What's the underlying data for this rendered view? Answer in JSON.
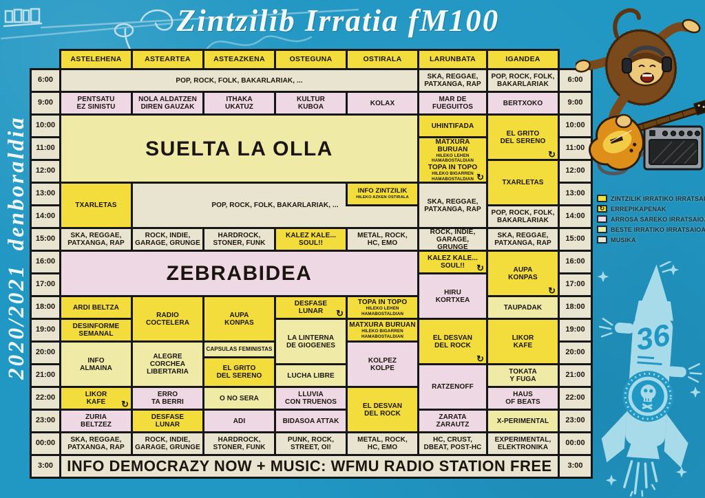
{
  "title": "Zintzilib Irratia fM100",
  "season_label": "2020/2021 denboraldia",
  "rocket_number": "36",
  "icons": {
    "repeat_glyph": "↻",
    "repeat_meaning": "errepikapena (repeat broadcast)"
  },
  "colors": {
    "background_blue": "#2197c3",
    "zintzilik_yellow": "#f3dd3d",
    "arrosa_pink": "#eed8e4",
    "beste_pale_yellow": "#efeaa6",
    "musika_cream": "#e9e4cf",
    "grid_line": "#161616",
    "light_blue_art": "#a7dbea"
  },
  "legend": {
    "items": [
      {
        "swatch": "zintzilik",
        "label": "ZINTZILIK IRRATIKO IRRATSAIOAK"
      },
      {
        "swatch": "repeat",
        "label": "ERREPIKAPENAK"
      },
      {
        "swatch": "arrosa",
        "label": "ARROSA SAREKO IRRATSAIOAK"
      },
      {
        "swatch": "beste",
        "label": "BESTE IRRATIKO IRRATSAIOAK"
      },
      {
        "swatch": "musika",
        "label": "MUSIKA"
      }
    ]
  },
  "schedule": {
    "days": [
      "ASTELEHENA",
      "ASTEARTEA",
      "ASTEAZKENA",
      "OSTEGUNA",
      "OSTIRALA",
      "LARUNBATA",
      "IGANDEA"
    ],
    "times": [
      "6:00",
      "9:00",
      "10:00",
      "11:00",
      "12:00",
      "13:00",
      "14:00",
      "15:00",
      "16:00",
      "17:00",
      "18:00",
      "19:00",
      "20:00",
      "21:00",
      "22:00",
      "23:00",
      "00:00",
      "3:00"
    ],
    "cells": [
      {
        "d": 1,
        "r": 0,
        "cs": 5,
        "type": "musika",
        "lines": [
          {
            "t": "POP, ROCK, FOLK, BAKARLARIAK, ..."
          }
        ]
      },
      {
        "d": 6,
        "r": 0,
        "type": "musika",
        "lines": [
          {
            "t": "SKA, REGGAE,"
          },
          {
            "t": "PATXANGA, RAP"
          }
        ]
      },
      {
        "d": 7,
        "r": 0,
        "type": "musika",
        "lines": [
          {
            "t": "POP, ROCK, FOLK,"
          },
          {
            "t": "BAKARLARIAK"
          }
        ]
      },
      {
        "d": 1,
        "r": 1,
        "type": "arrosa",
        "lines": [
          {
            "t": "PENTSATU"
          },
          {
            "t": "EZ SINISTU"
          }
        ]
      },
      {
        "d": 2,
        "r": 1,
        "type": "arrosa",
        "lines": [
          {
            "t": "NOLA ALDATZEN"
          },
          {
            "t": "DIREN GAUZAK"
          }
        ]
      },
      {
        "d": 3,
        "r": 1,
        "type": "arrosa",
        "lines": [
          {
            "t": "ITHAKA"
          },
          {
            "t": "UKATUZ"
          }
        ]
      },
      {
        "d": 4,
        "r": 1,
        "type": "arrosa",
        "lines": [
          {
            "t": "KULTUR"
          },
          {
            "t": "KUBOA"
          }
        ]
      },
      {
        "d": 5,
        "r": 1,
        "type": "arrosa",
        "lines": [
          {
            "t": "KOLAX"
          }
        ]
      },
      {
        "d": 6,
        "r": 1,
        "type": "arrosa",
        "lines": [
          {
            "t": "MAR DE"
          },
          {
            "t": "FUEGUITOS"
          }
        ]
      },
      {
        "d": 7,
        "r": 1,
        "type": "arrosa",
        "lines": [
          {
            "t": "BERTXOKO"
          }
        ]
      },
      {
        "d": 1,
        "r": 2,
        "cs": 5,
        "rs": 3,
        "type": "beste",
        "size": "xl",
        "lines": [
          {
            "t": "SUELTA LA OLLA"
          }
        ]
      },
      {
        "d": 6,
        "r": 2,
        "type": "zintzilik",
        "lines": [
          {
            "t": "UHINTIFADA"
          }
        ]
      },
      {
        "d": 6,
        "r": 3,
        "rs": 2,
        "type": "zintzilik",
        "rep": 1,
        "lines": [
          {
            "t": "MATXURA BURUAN"
          },
          {
            "t": "HILEKO LEHEN HAMABOSTALDIAN",
            "s": 1
          },
          {
            "t": "TOPA IN TOPO"
          },
          {
            "t": "HILEKO BIGARREN HAMABOSTALDIAN",
            "s": 1
          }
        ]
      },
      {
        "d": 7,
        "r": 2,
        "rs": 2,
        "type": "zintzilik",
        "rep": 1,
        "lines": [
          {
            "t": "EL GRITO"
          },
          {
            "t": "DEL SERENO"
          }
        ]
      },
      {
        "d": 7,
        "r": 4,
        "rs": 2,
        "type": "zintzilik",
        "lines": [
          {
            "t": "TXARLETAS"
          }
        ]
      },
      {
        "d": 1,
        "r": 5,
        "rs": 2,
        "type": "zintzilik",
        "lines": [
          {
            "t": "TXARLETAS"
          }
        ]
      },
      {
        "d": 2,
        "r": 5,
        "cs": 4,
        "rs": 2,
        "type": "musika",
        "lines": [
          {
            "t": "POP, ROCK, FOLK, BAKARLARIAK, ..."
          }
        ]
      },
      {
        "d": 5,
        "r": 5,
        "type": "zintzilik",
        "z": 1,
        "lines": [
          {
            "t": "INFO ZINTZILIK"
          },
          {
            "t": "HILEKO AZKEN OSTIRALA",
            "s": 1
          }
        ]
      },
      {
        "d": 6,
        "r": 5,
        "rs": 2,
        "type": "musika",
        "lines": [
          {
            "t": "SKA, REGGAE,"
          },
          {
            "t": "PATXANGA, RAP"
          }
        ]
      },
      {
        "d": 7,
        "r": 6,
        "type": "musika",
        "lines": [
          {
            "t": "POP, ROCK, FOLK,"
          },
          {
            "t": "BAKARLARIAK"
          }
        ]
      },
      {
        "d": 1,
        "r": 7,
        "type": "musika",
        "lines": [
          {
            "t": "SKA, REGGAE,"
          },
          {
            "t": "PATXANGA, RAP"
          }
        ]
      },
      {
        "d": 2,
        "r": 7,
        "type": "musika",
        "lines": [
          {
            "t": "ROCK, INDIE,"
          },
          {
            "t": "GARAGE, GRUNGE"
          }
        ]
      },
      {
        "d": 3,
        "r": 7,
        "type": "musika",
        "lines": [
          {
            "t": "HARDROCK,"
          },
          {
            "t": "STONER, FUNK"
          }
        ]
      },
      {
        "d": 4,
        "r": 7,
        "type": "zintzilik",
        "lines": [
          {
            "t": "KALEZ KALE..."
          },
          {
            "t": "SOUL!!"
          }
        ]
      },
      {
        "d": 5,
        "r": 7,
        "type": "musika",
        "lines": [
          {
            "t": "METAL, ROCK,"
          },
          {
            "t": "HC, EMO"
          }
        ]
      },
      {
        "d": 6,
        "r": 7,
        "type": "musika",
        "lines": [
          {
            "t": "ROCK, INDIE,"
          },
          {
            "t": "GARAGE, GRUNGE"
          }
        ]
      },
      {
        "d": 7,
        "r": 7,
        "type": "musika",
        "lines": [
          {
            "t": "SKA, REGGAE,"
          },
          {
            "t": "PATXANGA, RAP"
          }
        ]
      },
      {
        "d": 1,
        "r": 8,
        "cs": 5,
        "rs": 2,
        "type": "arrosa",
        "size": "xl",
        "lines": [
          {
            "t": "ZEBRABIDEA"
          }
        ]
      },
      {
        "d": 6,
        "r": 8,
        "type": "zintzilik",
        "rep": 1,
        "lines": [
          {
            "t": "KALEZ KALE..."
          },
          {
            "t": "SOUL!!"
          }
        ]
      },
      {
        "d": 6,
        "r": 9,
        "rs": 2,
        "type": "arrosa",
        "lines": [
          {
            "t": "HIRU"
          },
          {
            "t": "KORTXEA"
          }
        ]
      },
      {
        "d": 7,
        "r": 8,
        "rs": 2,
        "type": "zintzilik",
        "rep": 1,
        "lines": [
          {
            "t": "AUPA"
          },
          {
            "t": "KONPAS"
          }
        ]
      },
      {
        "d": 1,
        "r": 10,
        "type": "zintzilik",
        "lines": [
          {
            "t": "ARDI BELTZA"
          }
        ]
      },
      {
        "d": 2,
        "r": 10,
        "rs": 2,
        "type": "zintzilik",
        "lines": [
          {
            "t": "RADIO"
          },
          {
            "t": "COCTELERA"
          }
        ]
      },
      {
        "d": 3,
        "r": 10,
        "rs": 2,
        "type": "zintzilik",
        "lines": [
          {
            "t": "AUPA"
          },
          {
            "t": "KONPAS"
          }
        ]
      },
      {
        "d": 4,
        "r": 10,
        "type": "zintzilik",
        "rep": 1,
        "lines": [
          {
            "t": "DESFASE"
          },
          {
            "t": "LUNAR"
          }
        ]
      },
      {
        "d": 5,
        "r": 10,
        "type": "zintzilik",
        "lines": [
          {
            "t": "TOPA IN TOPO"
          },
          {
            "t": "HILEKO LEHEN HAMABOSTALDIAN",
            "s": 1
          }
        ]
      },
      {
        "d": 7,
        "r": 10,
        "type": "beste",
        "lines": [
          {
            "t": "TAUPADAK"
          }
        ]
      },
      {
        "d": 1,
        "r": 11,
        "type": "zintzilik",
        "lines": [
          {
            "t": "DESINFORME"
          },
          {
            "t": "SEMANAL"
          }
        ]
      },
      {
        "d": 4,
        "r": 11,
        "rs": 2,
        "type": "beste",
        "lines": [
          {
            "t": "LA LINTERNA"
          },
          {
            "t": "DE GIOGENES"
          }
        ]
      },
      {
        "d": 5,
        "r": 11,
        "type": "zintzilik",
        "lines": [
          {
            "t": "MATXURA BURUAN"
          },
          {
            "t": "HILEKO BIGARREN HAMABOSTALDIAN",
            "s": 1
          }
        ]
      },
      {
        "d": 6,
        "r": 11,
        "rs": 2,
        "type": "zintzilik",
        "rep": 1,
        "lines": [
          {
            "t": "EL DESVAN"
          },
          {
            "t": "DEL ROCK"
          }
        ]
      },
      {
        "d": 7,
        "r": 11,
        "rs": 2,
        "type": "zintzilik",
        "lines": [
          {
            "t": "LIKOR"
          },
          {
            "t": "KAFE"
          }
        ]
      },
      {
        "d": 1,
        "r": 12,
        "rs": 2,
        "type": "beste",
        "lines": [
          {
            "t": "INFO"
          },
          {
            "t": "ALMAINA"
          }
        ]
      },
      {
        "d": 2,
        "r": 12,
        "rs": 2,
        "type": "beste",
        "lines": [
          {
            "t": "ALEGRE"
          },
          {
            "t": "CORCHEA"
          },
          {
            "t": "LIBERTARIA"
          }
        ]
      },
      {
        "d": 3,
        "r": 12,
        "rs": 2,
        "type": "split",
        "parts": [
          {
            "type": "beste",
            "lines": [
              {
                "t": "CAPSULAS FEMINISTAS",
                "s": 2
              }
            ]
          },
          {
            "type": "zintzilik",
            "lines": [
              {
                "t": "EL GRITO"
              },
              {
                "t": "DEL SERENO"
              }
            ]
          }
        ]
      },
      {
        "d": 5,
        "r": 12,
        "rs": 2,
        "type": "arrosa",
        "lines": [
          {
            "t": "KOLPEZ"
          },
          {
            "t": "KOLPE"
          }
        ]
      },
      {
        "d": 4,
        "r": 13,
        "type": "beste",
        "lines": [
          {
            "t": "LUCHA LIBRE"
          }
        ]
      },
      {
        "d": 6,
        "r": 13,
        "rs": 2,
        "type": "arrosa",
        "lines": [
          {
            "t": "RATZENOFF"
          }
        ]
      },
      {
        "d": 7,
        "r": 13,
        "type": "beste",
        "lines": [
          {
            "t": "TOKATA"
          },
          {
            "t": "Y FUGA"
          }
        ]
      },
      {
        "d": 1,
        "r": 14,
        "type": "zintzilik",
        "rep": 1,
        "lines": [
          {
            "t": "LIKOR"
          },
          {
            "t": "KAFE"
          }
        ]
      },
      {
        "d": 2,
        "r": 14,
        "type": "arrosa",
        "lines": [
          {
            "t": "ERRO"
          },
          {
            "t": "TA BERRI"
          }
        ]
      },
      {
        "d": 3,
        "r": 14,
        "type": "beste",
        "lines": [
          {
            "t": "O NO SERA"
          }
        ]
      },
      {
        "d": 4,
        "r": 14,
        "type": "arrosa",
        "lines": [
          {
            "t": "LLUVIA"
          },
          {
            "t": "CON TRUENOS"
          }
        ]
      },
      {
        "d": 5,
        "r": 14,
        "rs": 2,
        "type": "zintzilik",
        "lines": [
          {
            "t": "EL DESVAN"
          },
          {
            "t": "DEL ROCK"
          }
        ]
      },
      {
        "d": 7,
        "r": 14,
        "type": "arrosa",
        "lines": [
          {
            "t": "HAUS"
          },
          {
            "t": "OF BEATS"
          }
        ]
      },
      {
        "d": 1,
        "r": 15,
        "type": "arrosa",
        "lines": [
          {
            "t": "ZURIA"
          },
          {
            "t": "BELTZEZ"
          }
        ]
      },
      {
        "d": 2,
        "r": 15,
        "type": "zintzilik",
        "lines": [
          {
            "t": "DESFASE"
          },
          {
            "t": "LUNAR"
          }
        ]
      },
      {
        "d": 3,
        "r": 15,
        "type": "arrosa",
        "lines": [
          {
            "t": "ADI"
          }
        ]
      },
      {
        "d": 4,
        "r": 15,
        "type": "arrosa",
        "lines": [
          {
            "t": "BIDASOA ATTAK"
          }
        ]
      },
      {
        "d": 6,
        "r": 15,
        "type": "arrosa",
        "lines": [
          {
            "t": "ZARATA"
          },
          {
            "t": "ZARAUTZ"
          }
        ]
      },
      {
        "d": 7,
        "r": 15,
        "type": "beste",
        "lines": [
          {
            "t": "X-PERIMENTAL"
          }
        ]
      },
      {
        "d": 1,
        "r": 16,
        "type": "musika",
        "lines": [
          {
            "t": "SKA, REGGAE,"
          },
          {
            "t": "PATXANGA, RAP"
          }
        ]
      },
      {
        "d": 2,
        "r": 16,
        "type": "musika",
        "lines": [
          {
            "t": "ROCK, INDIE,"
          },
          {
            "t": "GARAGE, GRUNGE"
          }
        ]
      },
      {
        "d": 3,
        "r": 16,
        "type": "musika",
        "lines": [
          {
            "t": "HARDROCK,"
          },
          {
            "t": "STONER, FUNK"
          }
        ]
      },
      {
        "d": 4,
        "r": 16,
        "type": "musika",
        "lines": [
          {
            "t": "PUNK, ROCK,"
          },
          {
            "t": "STREET, OI!"
          }
        ]
      },
      {
        "d": 5,
        "r": 16,
        "type": "musika",
        "lines": [
          {
            "t": "METAL, ROCK,"
          },
          {
            "t": "HC, EMO"
          }
        ]
      },
      {
        "d": 6,
        "r": 16,
        "type": "musika",
        "lines": [
          {
            "t": "HC, CRUST,"
          },
          {
            "t": "DBEAT, POST-HC"
          }
        ]
      },
      {
        "d": 7,
        "r": 16,
        "type": "musika",
        "lines": [
          {
            "t": "EXPERIMENTAL,"
          },
          {
            "t": "ELEKTRONIKA"
          }
        ]
      },
      {
        "d": 1,
        "r": 17,
        "cs": 7,
        "type": "musika",
        "size": "lg",
        "lines": [
          {
            "t": "INFO DEMOCRAZY NOW + MUSIC: WFMU RADIO STATION FREE"
          }
        ]
      }
    ]
  }
}
